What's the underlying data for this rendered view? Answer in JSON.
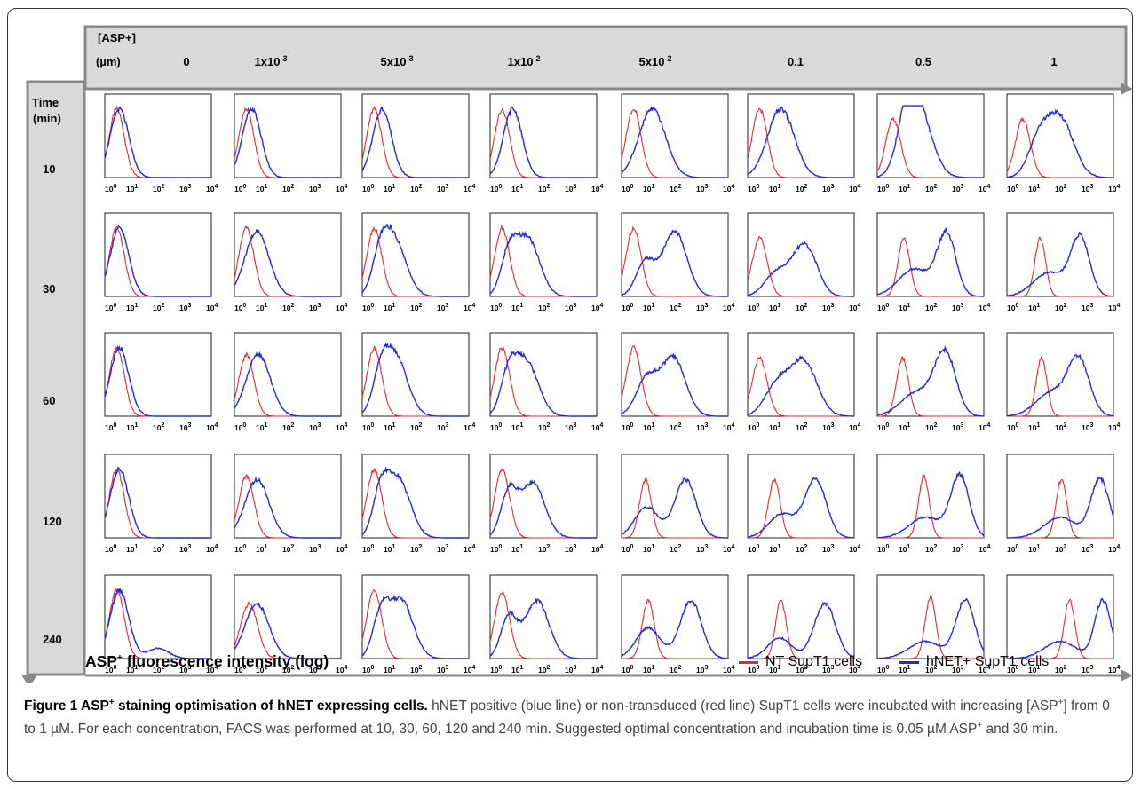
{
  "figure": {
    "col_header_label_1": "[ASP+]",
    "col_header_label_2": "(µm)",
    "concentrations": [
      {
        "base": "0",
        "exp": ""
      },
      {
        "base": "1x10",
        "exp": "-3"
      },
      {
        "base": "5x10",
        "exp": "-3"
      },
      {
        "base": "1x10",
        "exp": "-2"
      },
      {
        "base": "5x10",
        "exp": "-2"
      },
      {
        "base": "0.1",
        "exp": ""
      },
      {
        "base": "0.5",
        "exp": ""
      },
      {
        "base": "1",
        "exp": ""
      }
    ],
    "row_header_label_1": "Time",
    "row_header_label_2": "(min)",
    "times": [
      "10",
      "30",
      "60",
      "120",
      "240"
    ],
    "tick_labels": [
      "10",
      "10",
      "10",
      "10",
      "10"
    ],
    "tick_exponents": [
      "0",
      "1",
      "2",
      "3",
      "4"
    ],
    "x_axis_title": "ASP",
    "x_axis_title_sup": "+",
    "x_axis_title_rest": " fluorescence intensity (log)",
    "legend": [
      {
        "label": "NT SupT1 cells",
        "color": "#e8262b"
      },
      {
        "label": "hNET+ SupT1 cells",
        "color": "#1f2bd6"
      }
    ],
    "colors": {
      "nt": "#e8262b",
      "hnet": "#1f2bd6",
      "header_bg": "#d9d9d9",
      "header_border": "#888888"
    }
  },
  "caption": {
    "label": "Figure 1 ASP",
    "label_sup": "+",
    "label_rest": " staining optimisation of hNET expressing cells.",
    "t1": " hNET positive (blue line) or non-transduced (red line) SupT1 cells were incubated with increasing [ASP",
    "t1_sup": "+",
    "t2": "] from 0 to 1 µM. For each concentration, FACS was performed at 10, 30, 60, 120 and 240 min. Suggested optimal concentration and incubation time is 0.05 µM ASP",
    "t2_sup": "+",
    "t3": " and 30 min."
  },
  "chart_data": {
    "type": "line",
    "title": "",
    "xlabel": "ASP+ fluorescence intensity (log)",
    "ylabel": "",
    "x_scale": "log",
    "xlim": [
      1,
      10000
    ],
    "grid": false,
    "legend_position": "bottom-right",
    "concentrations_uM": [
      "0",
      "1x10-3",
      "5x10-3",
      "1x10-2",
      "5x10-2",
      "0.1",
      "0.5",
      "1"
    ],
    "times_min": [
      "10",
      "30",
      "60",
      "120",
      "240"
    ],
    "series": [
      {
        "name": "NT SupT1 cells",
        "color": "#e8262b"
      },
      {
        "name": "hNET+ SupT1 cells",
        "color": "#1f2bd6"
      }
    ],
    "panels_note_units": "x = log10 fluorescence; peaks given as [center_log10, width_log10, relative_height]",
    "panels": [
      [
        {
          "nt": [
            [
              0.45,
              0.28,
              1.0
            ]
          ],
          "hnet": [
            [
              0.55,
              0.35,
              1.0
            ]
          ]
        },
        {
          "nt": [
            [
              0.45,
              0.28,
              1.0
            ]
          ],
          "hnet": [
            [
              0.65,
              0.35,
              1.0
            ]
          ]
        },
        {
          "nt": [
            [
              0.45,
              0.28,
              1.0
            ]
          ],
          "hnet": [
            [
              0.75,
              0.35,
              1.0
            ]
          ]
        },
        {
          "nt": [
            [
              0.45,
              0.28,
              1.0
            ]
          ],
          "hnet": [
            [
              0.85,
              0.35,
              1.0
            ]
          ]
        },
        {
          "nt": [
            [
              0.45,
              0.28,
              1.0
            ]
          ],
          "hnet": [
            [
              1.15,
              0.5,
              1.0
            ]
          ]
        },
        {
          "nt": [
            [
              0.45,
              0.28,
              1.0
            ]
          ],
          "hnet": [
            [
              1.25,
              0.5,
              1.0
            ]
          ]
        },
        {
          "nt": [
            [
              0.6,
              0.28,
              0.85
            ]
          ],
          "hnet": [
            [
              1.1,
              0.35,
              0.6
            ],
            [
              1.55,
              0.5,
              0.95
            ]
          ]
        },
        {
          "nt": [
            [
              0.6,
              0.28,
              0.85
            ]
          ],
          "hnet": [
            [
              1.2,
              0.4,
              0.5
            ],
            [
              2.0,
              0.5,
              0.85
            ]
          ]
        }
      ],
      [
        {
          "nt": [
            [
              0.45,
              0.28,
              1.0
            ]
          ],
          "hnet": [
            [
              0.55,
              0.35,
              1.0
            ]
          ]
        },
        {
          "nt": [
            [
              0.45,
              0.28,
              1.0
            ]
          ],
          "hnet": [
            [
              0.85,
              0.45,
              0.95
            ]
          ]
        },
        {
          "nt": [
            [
              0.45,
              0.28,
              1.0
            ]
          ],
          "hnet": [
            [
              0.7,
              0.3,
              0.5
            ],
            [
              1.2,
              0.45,
              0.8
            ]
          ]
        },
        {
          "nt": [
            [
              0.45,
              0.28,
              1.0
            ]
          ],
          "hnet": [
            [
              0.7,
              0.3,
              0.55
            ],
            [
              1.4,
              0.45,
              0.85
            ]
          ]
        },
        {
          "nt": [
            [
              0.45,
              0.28,
              1.0
            ]
          ],
          "hnet": [
            [
              0.9,
              0.35,
              0.5
            ],
            [
              2.0,
              0.45,
              0.95
            ]
          ]
        },
        {
          "nt": [
            [
              0.45,
              0.28,
              0.85
            ]
          ],
          "hnet": [
            [
              1.1,
              0.45,
              0.35
            ],
            [
              2.15,
              0.45,
              0.75
            ]
          ]
        },
        {
          "nt": [
            [
              1.0,
              0.22,
              0.85
            ]
          ],
          "hnet": [
            [
              1.4,
              0.6,
              0.4
            ],
            [
              2.6,
              0.35,
              0.9
            ]
          ]
        },
        {
          "nt": [
            [
              1.25,
              0.2,
              0.85
            ]
          ],
          "hnet": [
            [
              1.6,
              0.6,
              0.35
            ],
            [
              2.75,
              0.35,
              0.85
            ]
          ]
        }
      ],
      [
        {
          "nt": [
            [
              0.45,
              0.28,
              1.0
            ]
          ],
          "hnet": [
            [
              0.55,
              0.35,
              1.0
            ]
          ]
        },
        {
          "nt": [
            [
              0.45,
              0.28,
              0.9
            ]
          ],
          "hnet": [
            [
              0.9,
              0.45,
              0.9
            ]
          ]
        },
        {
          "nt": [
            [
              0.45,
              0.28,
              1.0
            ]
          ],
          "hnet": [
            [
              0.7,
              0.3,
              0.5
            ],
            [
              1.25,
              0.45,
              0.85
            ]
          ]
        },
        {
          "nt": [
            [
              0.45,
              0.28,
              1.0
            ]
          ],
          "hnet": [
            [
              0.7,
              0.3,
              0.55
            ],
            [
              1.35,
              0.45,
              0.8
            ]
          ]
        },
        {
          "nt": [
            [
              0.45,
              0.28,
              1.0
            ]
          ],
          "hnet": [
            [
              0.95,
              0.4,
              0.55
            ],
            [
              1.95,
              0.45,
              0.85
            ]
          ]
        },
        {
          "nt": [
            [
              0.45,
              0.28,
              0.85
            ]
          ],
          "hnet": [
            [
              1.1,
              0.45,
              0.45
            ],
            [
              2.1,
              0.5,
              0.8
            ]
          ]
        },
        {
          "nt": [
            [
              0.95,
              0.22,
              0.85
            ]
          ],
          "hnet": [
            [
              1.5,
              0.6,
              0.35
            ],
            [
              2.55,
              0.4,
              0.9
            ]
          ]
        },
        {
          "nt": [
            [
              1.3,
              0.2,
              0.85
            ]
          ],
          "hnet": [
            [
              1.7,
              0.6,
              0.35
            ],
            [
              2.7,
              0.4,
              0.8
            ]
          ]
        }
      ],
      [
        {
          "nt": [
            [
              0.45,
              0.28,
              1.0
            ]
          ],
          "hnet": [
            [
              0.55,
              0.35,
              1.0
            ]
          ]
        },
        {
          "nt": [
            [
              0.45,
              0.28,
              0.9
            ]
          ],
          "hnet": [
            [
              0.85,
              0.45,
              0.85
            ]
          ]
        },
        {
          "nt": [
            [
              0.45,
              0.28,
              1.0
            ]
          ],
          "hnet": [
            [
              0.7,
              0.3,
              0.6
            ],
            [
              1.35,
              0.45,
              0.85
            ]
          ]
        },
        {
          "nt": [
            [
              0.45,
              0.28,
              1.0
            ]
          ],
          "hnet": [
            [
              0.7,
              0.3,
              0.65
            ],
            [
              1.6,
              0.45,
              0.8
            ]
          ]
        },
        {
          "nt": [
            [
              0.9,
              0.22,
              0.85
            ]
          ],
          "hnet": [
            [
              0.95,
              0.45,
              0.45
            ],
            [
              2.4,
              0.4,
              0.85
            ]
          ]
        },
        {
          "nt": [
            [
              1.0,
              0.22,
              0.85
            ]
          ],
          "hnet": [
            [
              1.3,
              0.5,
              0.35
            ],
            [
              2.55,
              0.4,
              0.85
            ]
          ]
        },
        {
          "nt": [
            [
              1.75,
              0.2,
              0.9
            ]
          ],
          "hnet": [
            [
              1.8,
              0.6,
              0.3
            ],
            [
              3.1,
              0.35,
              0.9
            ]
          ]
        },
        {
          "nt": [
            [
              2.05,
              0.2,
              0.85
            ]
          ],
          "hnet": [
            [
              2.0,
              0.6,
              0.3
            ],
            [
              3.5,
              0.35,
              0.85
            ]
          ]
        }
      ],
      [
        {
          "nt": [
            [
              0.45,
              0.28,
              1.0
            ]
          ],
          "hnet": [
            [
              0.55,
              0.35,
              1.0
            ],
            [
              2.0,
              0.4,
              0.15
            ]
          ]
        },
        {
          "nt": [
            [
              0.55,
              0.32,
              0.8
            ]
          ],
          "hnet": [
            [
              0.85,
              0.45,
              0.8
            ]
          ]
        },
        {
          "nt": [
            [
              0.45,
              0.28,
              1.0
            ]
          ],
          "hnet": [
            [
              0.7,
              0.3,
              0.6
            ],
            [
              1.45,
              0.45,
              0.85
            ]
          ]
        },
        {
          "nt": [
            [
              0.45,
              0.28,
              0.95
            ]
          ],
          "hnet": [
            [
              0.7,
              0.3,
              0.6
            ],
            [
              1.75,
              0.45,
              0.85
            ]
          ]
        },
        {
          "nt": [
            [
              1.0,
              0.22,
              0.85
            ]
          ],
          "hnet": [
            [
              1.0,
              0.45,
              0.45
            ],
            [
              2.6,
              0.4,
              0.85
            ]
          ]
        },
        {
          "nt": [
            [
              1.25,
              0.2,
              0.85
            ]
          ],
          "hnet": [
            [
              1.2,
              0.45,
              0.3
            ],
            [
              2.9,
              0.4,
              0.8
            ]
          ]
        },
        {
          "nt": [
            [
              2.0,
              0.2,
              0.9
            ]
          ],
          "hnet": [
            [
              1.8,
              0.6,
              0.25
            ],
            [
              3.3,
              0.35,
              0.85
            ]
          ]
        },
        {
          "nt": [
            [
              2.35,
              0.2,
              0.85
            ]
          ],
          "hnet": [
            [
              2.0,
              0.6,
              0.25
            ],
            [
              3.6,
              0.3,
              0.85
            ]
          ]
        }
      ]
    ]
  }
}
